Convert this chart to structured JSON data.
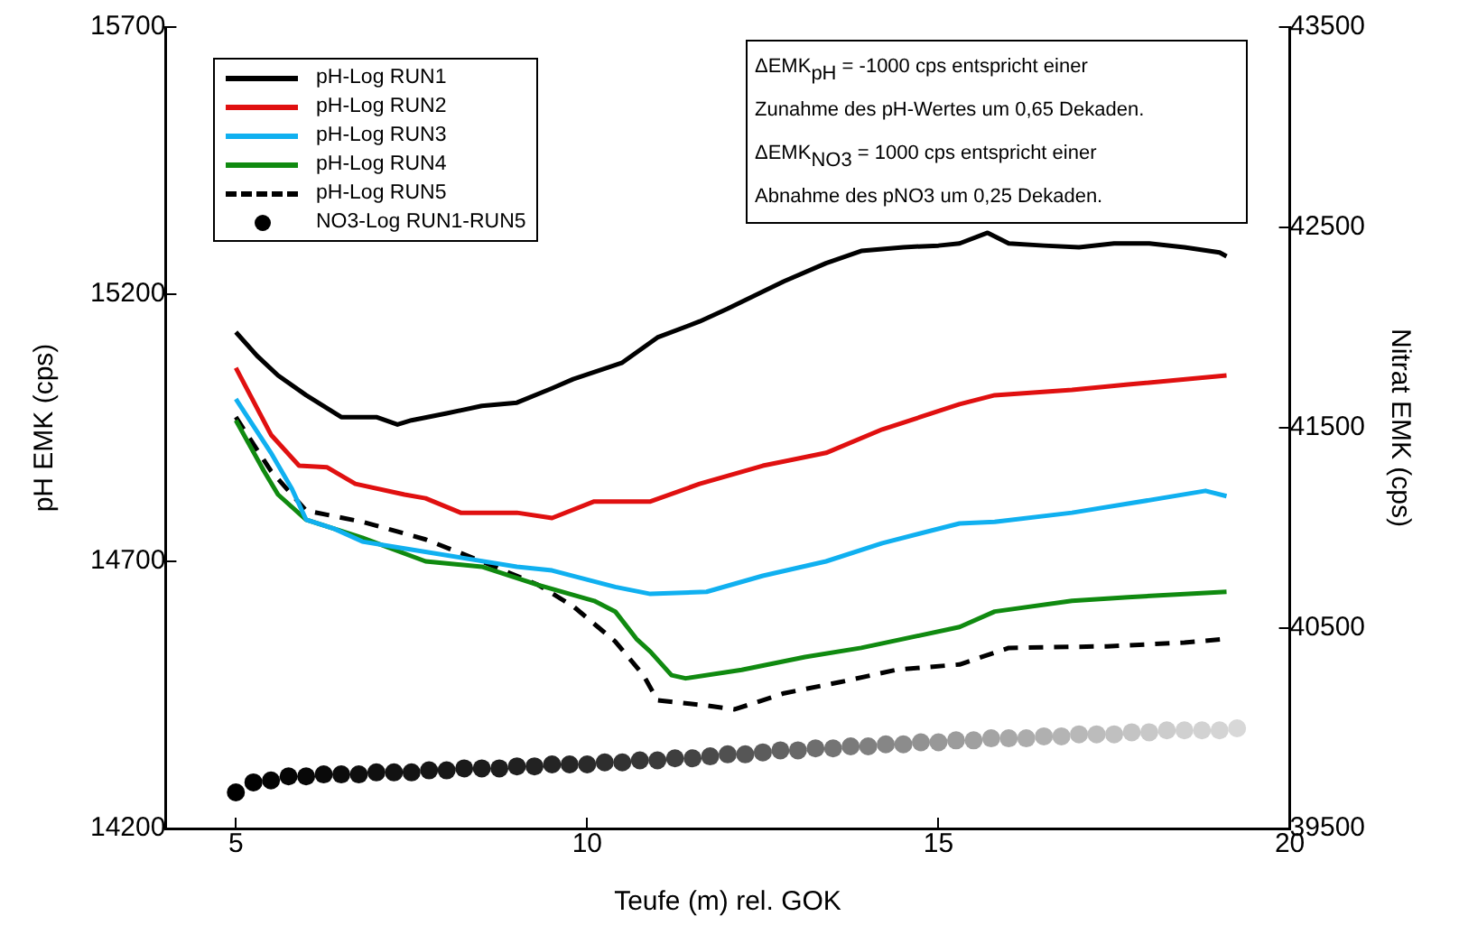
{
  "chart_data": {
    "type": "line",
    "xlabel": "Teufe (m) rel. GOK",
    "ylabel": "pH EMK (cps)",
    "y2label": "Nitrat EMK (cps)",
    "xlim": [
      4,
      20
    ],
    "xticks": [
      5,
      10,
      15,
      20
    ],
    "ylim": [
      14200,
      15700
    ],
    "yticks": [
      14200,
      14700,
      15200,
      15700
    ],
    "y2lim": [
      39500,
      43500
    ],
    "y2ticks": [
      39500,
      40500,
      41500,
      42500,
      43500
    ],
    "grid": false,
    "legend": "top left",
    "marker": "none",
    "line_style": "solid",
    "annotations": [
      "ΔEMK$_{pH}$ = -1000 cps entspricht einer",
      "Zunahme des pH-Wertes um 0,65 Dekaden.",
      "ΔEMK$_{NO3}$ = 1000 cps entspricht einer",
      "Abnahme des pNO3 um 0,25 Dekaden."
    ],
    "series": [
      {
        "name": "pH-Log RUN1",
        "color": "#000000",
        "x": [
          5,
          5.3,
          5.6,
          6,
          6.5,
          7,
          7.3,
          7.5,
          8,
          8.5,
          9,
          9.5,
          9.8,
          10.5,
          11,
          11.6,
          12,
          12.8,
          13.4,
          13.9,
          14.5,
          15,
          15.3,
          15.7,
          16,
          16.5,
          17,
          17.5,
          18,
          18.5,
          19,
          19.1
        ],
        "values": [
          15129,
          15085,
          15048,
          15011,
          14970,
          14970,
          14956,
          14964,
          14977,
          14991,
          14997,
          15024,
          15041,
          15072,
          15119,
          15149,
          15173,
          15224,
          15258,
          15281,
          15288,
          15291,
          15295,
          15315,
          15295,
          15291,
          15288,
          15295,
          15295,
          15288,
          15278,
          15271
        ]
      },
      {
        "name": "pH-Log RUN2",
        "color": "#e01010",
        "x": [
          5,
          5.5,
          5.9,
          6.3,
          6.7,
          7.4,
          7.7,
          8.2,
          9,
          9.5,
          10.1,
          10.9,
          11.6,
          12.5,
          13.4,
          14.2,
          15.3,
          15.8,
          16.9,
          17.7,
          19.1
        ],
        "values": [
          15062,
          14937,
          14879,
          14876,
          14845,
          14825,
          14818,
          14791,
          14791,
          14781,
          14812,
          14812,
          14845,
          14879,
          14903,
          14947,
          14994,
          15011,
          15021,
          15031,
          15048
        ]
      },
      {
        "name": "pH-Log RUN3",
        "color": "#10b0f0",
        "x": [
          5,
          5.5,
          5.8,
          6,
          6.4,
          6.8,
          7.4,
          8.2,
          9,
          9.5,
          10.4,
          10.9,
          11.7,
          12.5,
          13.4,
          14.2,
          15.3,
          15.8,
          16.9,
          17.7,
          18.8,
          19.1
        ],
        "values": [
          15004,
          14903,
          14835,
          14778,
          14761,
          14737,
          14724,
          14707,
          14690,
          14683,
          14652,
          14639,
          14643,
          14673,
          14700,
          14734,
          14771,
          14774,
          14791,
          14808,
          14832,
          14822
        ]
      },
      {
        "name": "pH-Log RUN4",
        "color": "#108a10",
        "x": [
          5,
          5.4,
          5.6,
          6,
          6.8,
          7.7,
          8.5,
          9.3,
          10.1,
          10.4,
          10.7,
          10.9,
          11.2,
          11.4,
          12.2,
          13.1,
          13.9,
          15.3,
          15.8,
          16.9,
          17.7,
          19.1
        ],
        "values": [
          14964,
          14869,
          14825,
          14778,
          14744,
          14700,
          14690,
          14656,
          14626,
          14606,
          14555,
          14531,
          14487,
          14481,
          14497,
          14521,
          14538,
          14577,
          14606,
          14626,
          14633,
          14643
        ]
      },
      {
        "name": "pH-Log RUN5",
        "color": "#000000",
        "line_style": "dashed",
        "x": [
          5,
          5.5,
          6,
          6.8,
          7.7,
          8.5,
          9.3,
          9.8,
          10.4,
          10.8,
          11,
          11.7,
          12.1,
          12.8,
          13.6,
          14.4,
          15.3,
          16,
          17.4,
          18.5,
          19.1
        ],
        "values": [
          14970,
          14869,
          14795,
          14774,
          14741,
          14700,
          14656,
          14616,
          14550,
          14487,
          14440,
          14430,
          14423,
          14453,
          14474,
          14497,
          14507,
          14538,
          14541,
          14548,
          14555
        ]
      },
      {
        "name": "NO3-Log RUN1-RUN5",
        "type": "scatter",
        "axis": "y2",
        "marker": "circle",
        "x": [
          5,
          5.25,
          5.5,
          5.75,
          6,
          6.25,
          6.5,
          6.75,
          7,
          7.25,
          7.5,
          7.75,
          8,
          8.25,
          8.5,
          8.75,
          9,
          9.25,
          9.5,
          9.75,
          10,
          10.25,
          10.5,
          10.75,
          11,
          11.25,
          11.5,
          11.75,
          12,
          12.25,
          12.5,
          12.75,
          13,
          13.25,
          13.5,
          13.75,
          14,
          14.25,
          14.5,
          14.75,
          15,
          15.25,
          15.5,
          15.75,
          16,
          16.25,
          16.5,
          16.75,
          17,
          17.25,
          17.5,
          17.75,
          18,
          18.25,
          18.5,
          18.75,
          19,
          19.25
        ],
        "values": [
          39680,
          39730,
          39740,
          39760,
          39760,
          39770,
          39770,
          39770,
          39780,
          39780,
          39780,
          39790,
          39790,
          39800,
          39800,
          39800,
          39810,
          39810,
          39820,
          39820,
          39820,
          39830,
          39830,
          39840,
          39840,
          39850,
          39850,
          39860,
          39870,
          39870,
          39880,
          39890,
          39890,
          39900,
          39900,
          39910,
          39910,
          39920,
          39920,
          39930,
          39930,
          39940,
          39940,
          39950,
          39950,
          39950,
          39960,
          39960,
          39970,
          39970,
          39970,
          39980,
          39980,
          39990,
          39990,
          39990,
          39990,
          40000
        ],
        "colors": [
          "#000000",
          "#020202",
          "#040404",
          "#060606",
          "#080808",
          "#0a0a0a",
          "#0c0c0c",
          "#0e0e0e",
          "#101010",
          "#121212",
          "#141414",
          "#161616",
          "#181818",
          "#1a1a1a",
          "#1c1c1c",
          "#1e1e1e",
          "#202020",
          "#222222",
          "#242424",
          "#262626",
          "#2a2a2a",
          "#2e2e2e",
          "#323232",
          "#363636",
          "#3a3a3a",
          "#3e3e3e",
          "#444444",
          "#4a4a4a",
          "#505050",
          "#565656",
          "#5c5c5c",
          "#626262",
          "#686868",
          "#6e6e6e",
          "#747474",
          "#7a7a7a",
          "#808080",
          "#868686",
          "#8c8c8c",
          "#929292",
          "#989898",
          "#9c9c9c",
          "#a0a0a0",
          "#a4a4a4",
          "#a8a8a8",
          "#acacac",
          "#b0b0b0",
          "#b4b4b4",
          "#b8b8b8",
          "#bcbcbc",
          "#c0c0c0",
          "#c4c4c4",
          "#c8c8c8",
          "#cccccc",
          "#d0d0d0",
          "#d2d2d2",
          "#d4d4d4",
          "#d8d8d8"
        ]
      }
    ]
  }
}
